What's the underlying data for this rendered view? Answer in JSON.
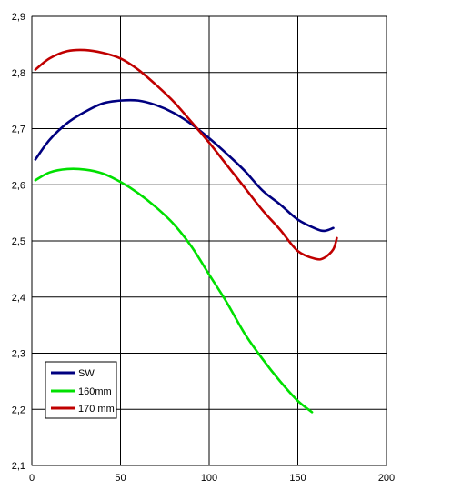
{
  "chart_data": {
    "type": "line",
    "title": "",
    "xlabel": "",
    "ylabel": "",
    "xlim": [
      0,
      200
    ],
    "ylim": [
      2.1,
      2.9
    ],
    "xticks": [
      0,
      50,
      100,
      150,
      200
    ],
    "yticks": [
      2.1,
      2.2,
      2.3,
      2.4,
      2.5,
      2.6,
      2.7,
      2.8,
      2.9
    ],
    "x_tick_labels": [
      "0",
      "50",
      "100",
      "150",
      "200"
    ],
    "y_tick_labels": [
      "2,1",
      "2,2",
      "2,3",
      "2,4",
      "2,5",
      "2,6",
      "2,7",
      "2,8",
      "2,9"
    ],
    "grid": true,
    "legend_position": "bottom-left",
    "series": [
      {
        "name": "SW",
        "color": "#000080",
        "x": [
          2,
          10,
          20,
          30,
          40,
          50,
          60,
          70,
          80,
          90,
          100,
          110,
          120,
          130,
          140,
          150,
          160,
          165,
          170
        ],
        "y": [
          2.645,
          2.68,
          2.71,
          2.73,
          2.745,
          2.75,
          2.75,
          2.742,
          2.728,
          2.708,
          2.683,
          2.655,
          2.625,
          2.59,
          2.565,
          2.538,
          2.522,
          2.518,
          2.523
        ]
      },
      {
        "name": "160mm",
        "color": "#00e000",
        "x": [
          2,
          10,
          20,
          30,
          40,
          50,
          60,
          70,
          80,
          90,
          100,
          110,
          120,
          130,
          140,
          150,
          158
        ],
        "y": [
          2.608,
          2.622,
          2.628,
          2.627,
          2.62,
          2.605,
          2.585,
          2.56,
          2.53,
          2.49,
          2.44,
          2.39,
          2.335,
          2.29,
          2.25,
          2.215,
          2.195
        ]
      },
      {
        "name": "170 mm",
        "color": "#c00000",
        "x": [
          2,
          10,
          20,
          30,
          40,
          50,
          60,
          70,
          80,
          90,
          100,
          110,
          120,
          130,
          140,
          150,
          160,
          165,
          170,
          172
        ],
        "y": [
          2.805,
          2.825,
          2.838,
          2.84,
          2.835,
          2.825,
          2.805,
          2.778,
          2.748,
          2.712,
          2.675,
          2.635,
          2.595,
          2.555,
          2.52,
          2.482,
          2.468,
          2.47,
          2.485,
          2.505
        ]
      }
    ]
  }
}
